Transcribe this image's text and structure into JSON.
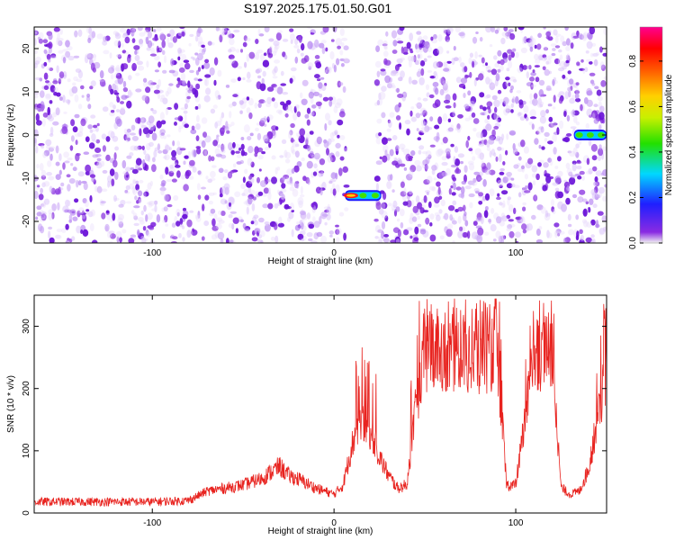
{
  "title": "S197.2025.175.01.50.G01",
  "chart_data": [
    {
      "type": "heatmap",
      "xlabel": "Height of straight line (km)",
      "ylabel": "Frequency (Hz)",
      "xlim": [
        -165,
        150
      ],
      "ylim": [
        -25,
        25
      ],
      "xticks": [
        -100,
        0,
        100
      ],
      "yticks": [
        -20,
        -10,
        0,
        10,
        20
      ],
      "colorbar": {
        "label": "Normalized spectral amplitude",
        "range": [
          0,
          0.95
        ],
        "ticks": [
          0.0,
          0.2,
          0.4,
          0.6,
          0.8
        ],
        "colormap": "rainbow (purple-blue-cyan-green-yellow-orange-red-magenta)"
      },
      "background_noise": {
        "level": 0.08,
        "color": "#8a35e0",
        "x_range": [
          -165,
          150
        ],
        "y_range": [
          -25,
          25
        ]
      },
      "gap": {
        "x_range": [
          7,
          23
        ]
      },
      "signals": [
        {
          "x_range": [
            6,
            26
          ],
          "freq": -14,
          "peak_amplitude": 0.9
        },
        {
          "x_range": [
            132,
            150
          ],
          "freq": 0,
          "peak_amplitude": 0.5
        }
      ]
    },
    {
      "type": "line",
      "xlabel": "Height of straight line (km)",
      "ylabel": "SNR (10 * v/v)",
      "xlim": [
        -165,
        150
      ],
      "ylim": [
        0,
        350
      ],
      "xticks": [
        -100,
        0,
        100
      ],
      "yticks": [
        0,
        100,
        200,
        300
      ],
      "color": "#e8231f",
      "x": [
        -165,
        -140,
        -120,
        -100,
        -80,
        -70,
        -60,
        -50,
        -40,
        -30,
        -25,
        -20,
        -10,
        0,
        5,
        10,
        15,
        20,
        25,
        30,
        35,
        40,
        45,
        50,
        60,
        70,
        80,
        90,
        95,
        100,
        110,
        120,
        125,
        130,
        135,
        140,
        145,
        150
      ],
      "y": [
        18,
        18,
        18,
        18,
        20,
        35,
        40,
        45,
        55,
        75,
        60,
        55,
        40,
        30,
        45,
        110,
        150,
        130,
        90,
        60,
        40,
        45,
        170,
        250,
        250,
        250,
        240,
        250,
        45,
        45,
        250,
        250,
        40,
        30,
        35,
        70,
        150,
        230
      ]
    }
  ]
}
